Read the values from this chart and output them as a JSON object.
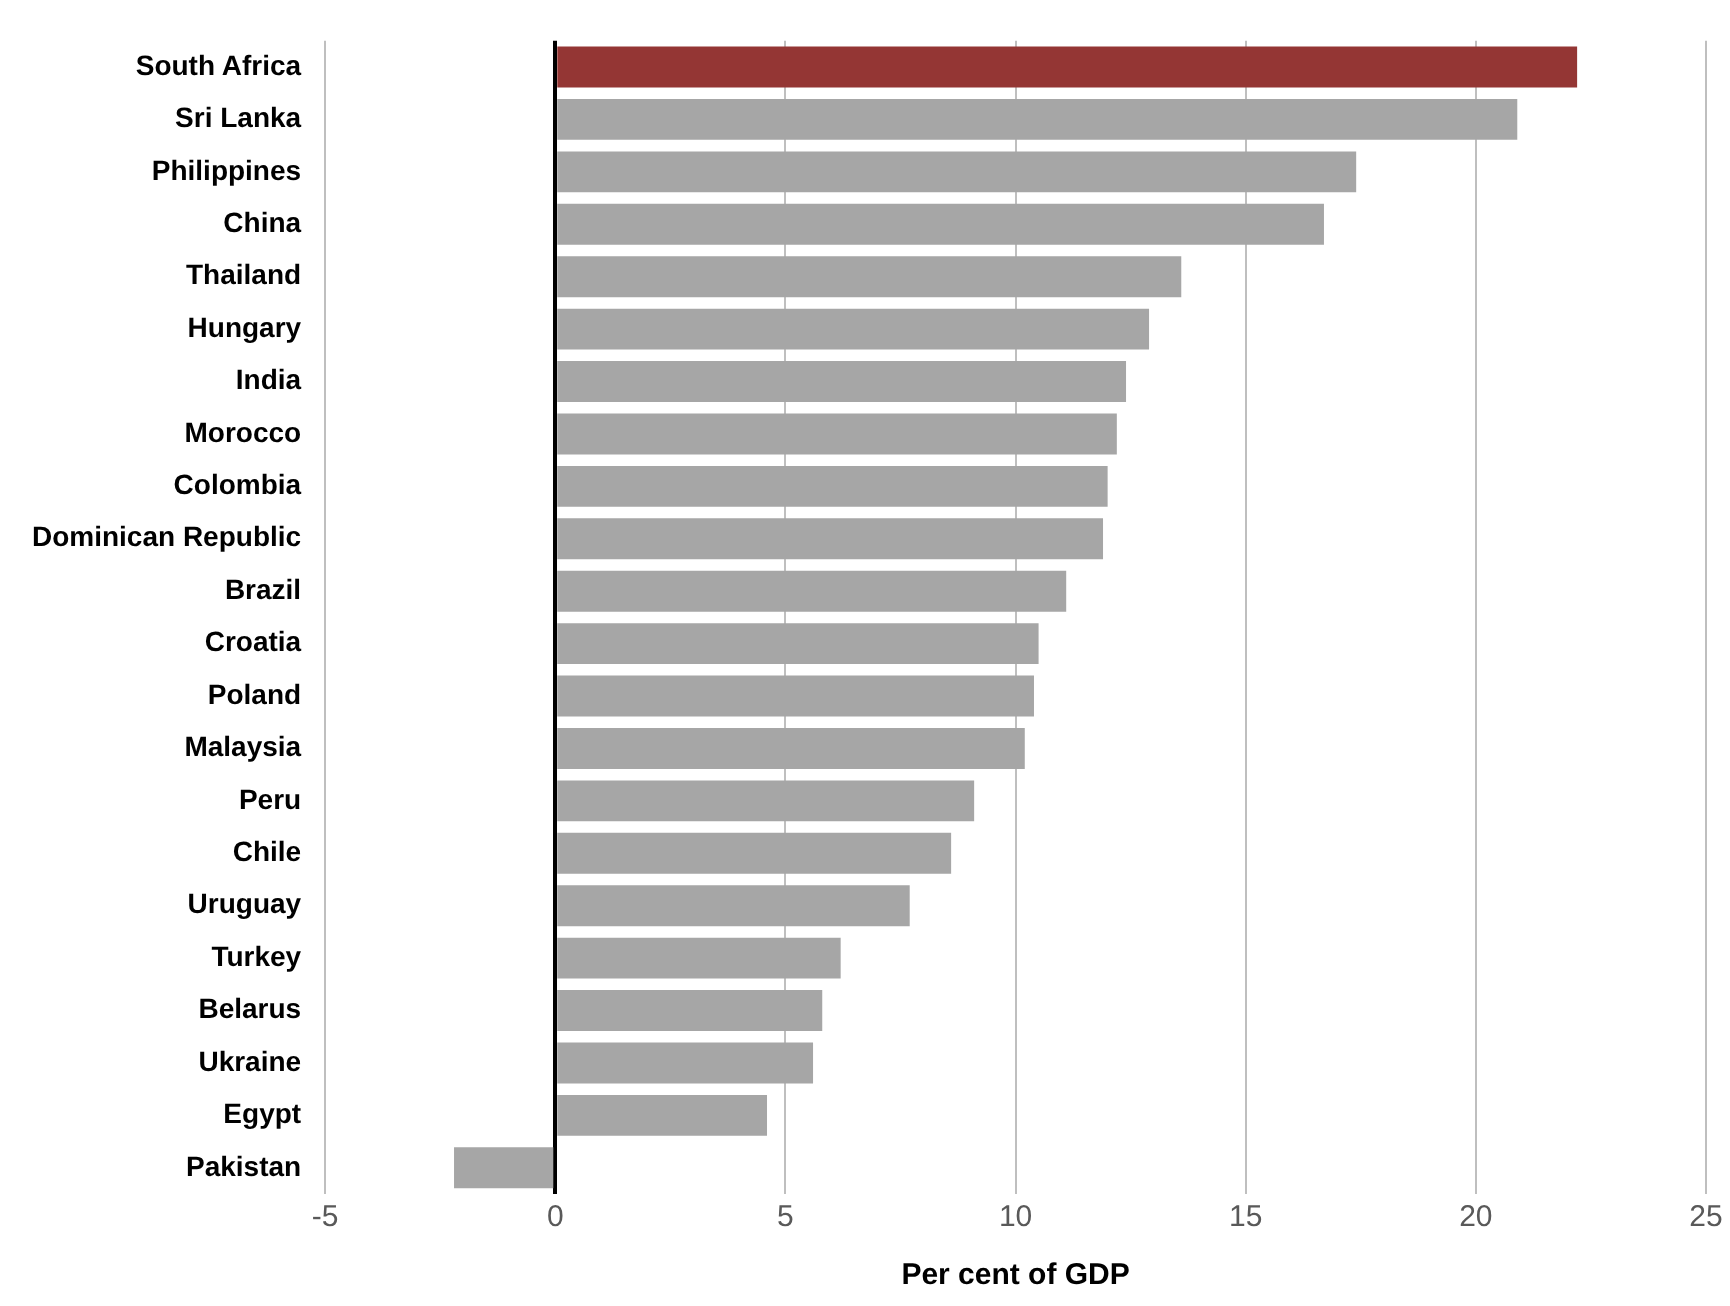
{
  "chart_data": {
    "type": "bar",
    "orientation": "horizontal",
    "xlabel": "Per cent of GDP",
    "categories": [
      "South Africa",
      "Sri Lanka",
      "Philippines",
      "China",
      "Thailand",
      "Hungary",
      "India",
      "Morocco",
      "Colombia",
      "Dominican Republic",
      "Brazil",
      "Croatia",
      "Poland",
      "Malaysia",
      "Peru",
      "Chile",
      "Uruguay",
      "Turkey",
      "Belarus",
      "Ukraine",
      "Egypt",
      "Pakistan"
    ],
    "values": [
      22.2,
      20.9,
      17.4,
      16.7,
      13.6,
      12.9,
      12.4,
      12.2,
      12.0,
      11.9,
      11.1,
      10.5,
      10.4,
      10.2,
      9.1,
      8.6,
      7.7,
      6.2,
      5.8,
      5.6,
      4.6,
      -2.2
    ],
    "colors": [
      "#943634",
      "#a6a6a6",
      "#a6a6a6",
      "#a6a6a6",
      "#a6a6a6",
      "#a6a6a6",
      "#a6a6a6",
      "#a6a6a6",
      "#a6a6a6",
      "#a6a6a6",
      "#a6a6a6",
      "#a6a6a6",
      "#a6a6a6",
      "#a6a6a6",
      "#a6a6a6",
      "#a6a6a6",
      "#a6a6a6",
      "#a6a6a6",
      "#a6a6a6",
      "#a6a6a6",
      "#a6a6a6",
      "#a6a6a6"
    ],
    "xlim": [
      -5,
      25
    ],
    "xticks": [
      -5,
      0,
      5,
      10,
      15,
      20,
      25
    ],
    "grid": "x",
    "legend": false
  }
}
